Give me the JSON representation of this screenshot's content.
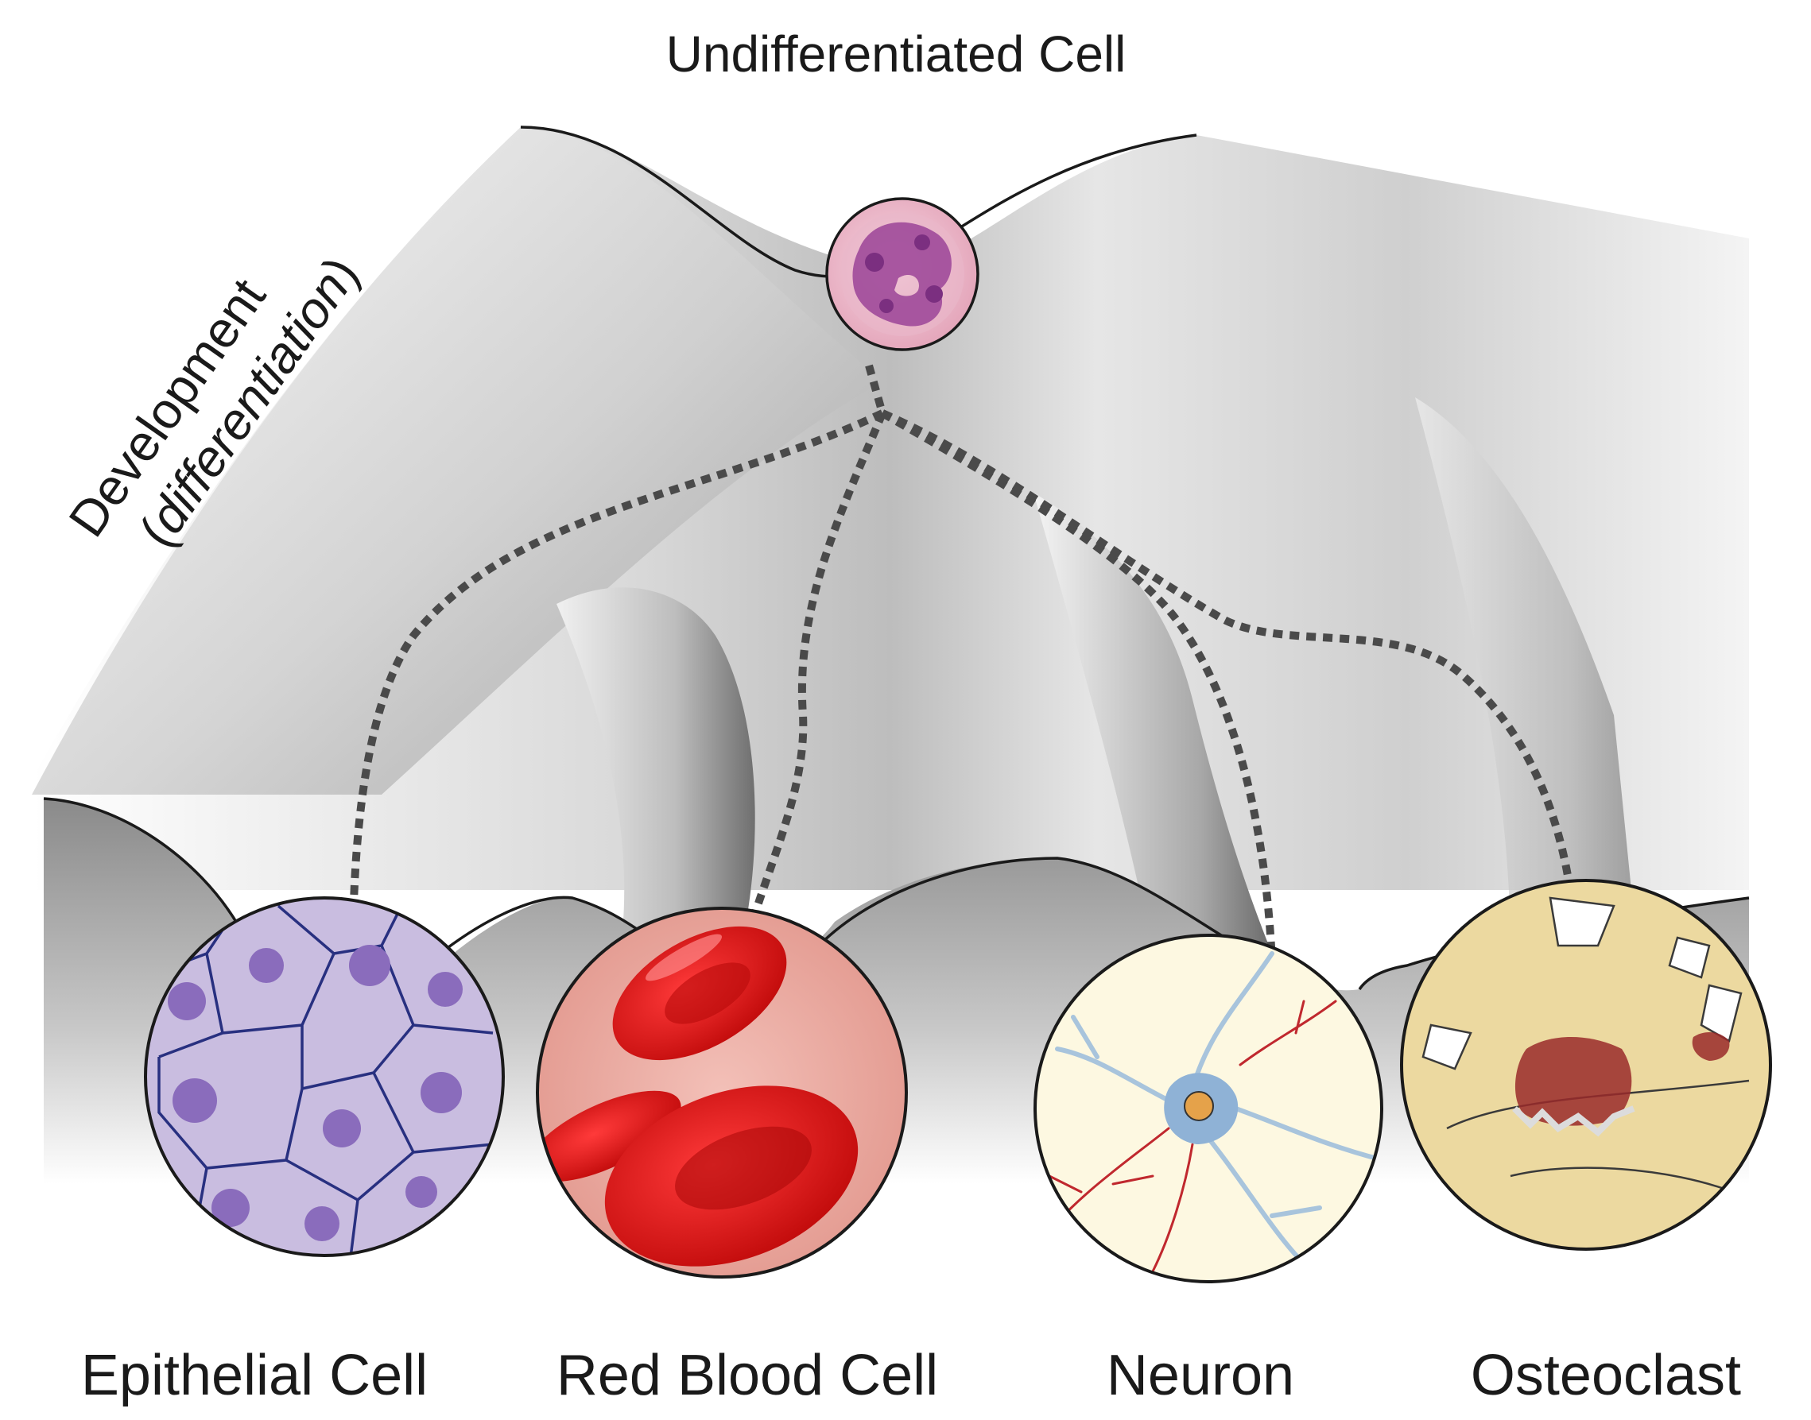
{
  "title": "Undifferentiated Cell",
  "axis_label": {
    "line1": "Development",
    "line2": "differentiation"
  },
  "cells": [
    {
      "id": "epithelial",
      "label": "Epithelial Cell",
      "color": "#c9bde0"
    },
    {
      "id": "rbc",
      "label": "Red Blood Cell",
      "color": "#e8a49c"
    },
    {
      "id": "neuron",
      "label": "Neuron",
      "color": "#fdf8e1"
    },
    {
      "id": "osteoclast",
      "label": "Osteoclast",
      "color": "#ecd9a0"
    }
  ],
  "colors": {
    "landscape_dark": "#8c8c8c",
    "landscape_light": "#f2f2f2",
    "path": "#4a4a4a",
    "stem_cell": "#e6a5c9"
  }
}
